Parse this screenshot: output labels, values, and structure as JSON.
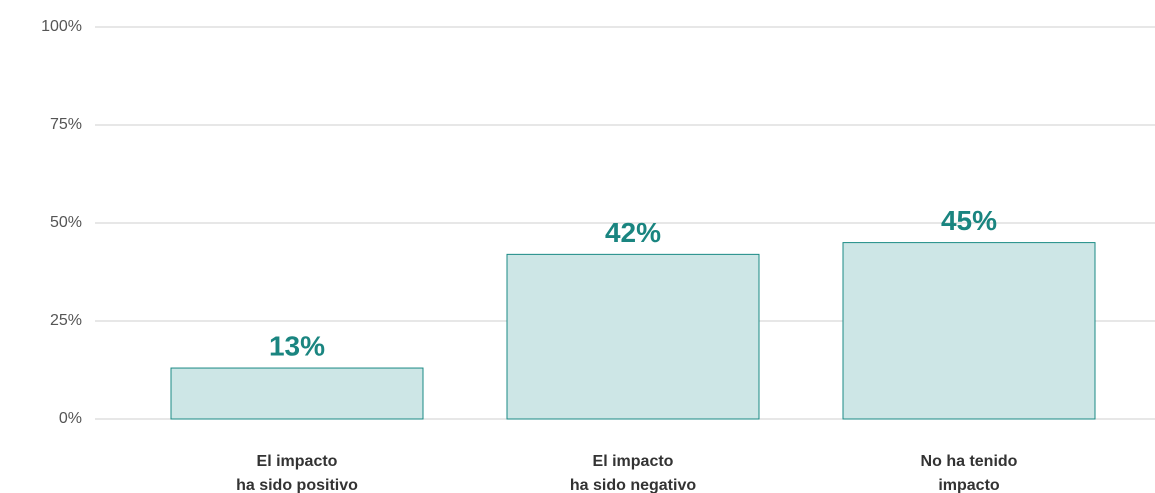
{
  "chart_data": {
    "type": "bar",
    "categories": [
      "El impacto\nha sido positivo",
      "El impacto\nha sido negativo",
      "No ha tenido\nimpacto"
    ],
    "values": [
      13,
      42,
      45
    ],
    "value_labels": [
      "13%",
      "42%",
      "45%"
    ],
    "color": "#cde6e6",
    "edge_color": "#1a8a84",
    "ylim": [
      0,
      100
    ],
    "yticks": [
      {
        "value": 0,
        "label": "0%"
      },
      {
        "value": 25,
        "label": "25%"
      },
      {
        "value": 50,
        "label": "50%"
      },
      {
        "value": 75,
        "label": "75%"
      },
      {
        "value": 100,
        "label": "100%"
      }
    ],
    "grid": true
  }
}
